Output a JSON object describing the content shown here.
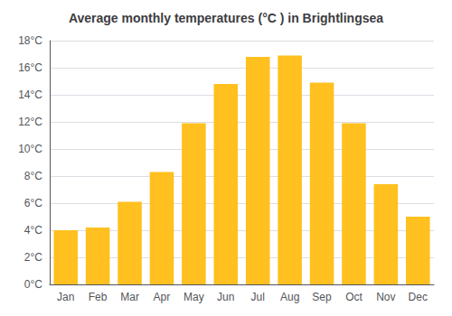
{
  "chart_data": {
    "type": "bar",
    "title": "Average monthly temperatures (°C ) in Brightlingsea",
    "categories": [
      "Jan",
      "Feb",
      "Mar",
      "Apr",
      "May",
      "Jun",
      "Jul",
      "Aug",
      "Sep",
      "Oct",
      "Nov",
      "Dec"
    ],
    "values": [
      4.0,
      4.2,
      6.1,
      8.3,
      11.9,
      14.8,
      16.8,
      16.9,
      14.9,
      11.9,
      7.4,
      5.0
    ],
    "color": "#FFC020",
    "ylim": [
      0,
      18
    ],
    "yticks": [
      {
        "value": 0,
        "label": "0°C"
      },
      {
        "value": 2,
        "label": "2°C"
      },
      {
        "value": 4,
        "label": "4°C"
      },
      {
        "value": 6,
        "label": "6°C"
      },
      {
        "value": 8,
        "label": "8°C"
      },
      {
        "value": 10,
        "label": "10°C"
      },
      {
        "value": 12,
        "label": "12°C"
      },
      {
        "value": 14,
        "label": "14°C"
      },
      {
        "value": 16,
        "label": "16°C"
      },
      {
        "value": 18,
        "label": "18°C"
      }
    ],
    "grid": true
  }
}
